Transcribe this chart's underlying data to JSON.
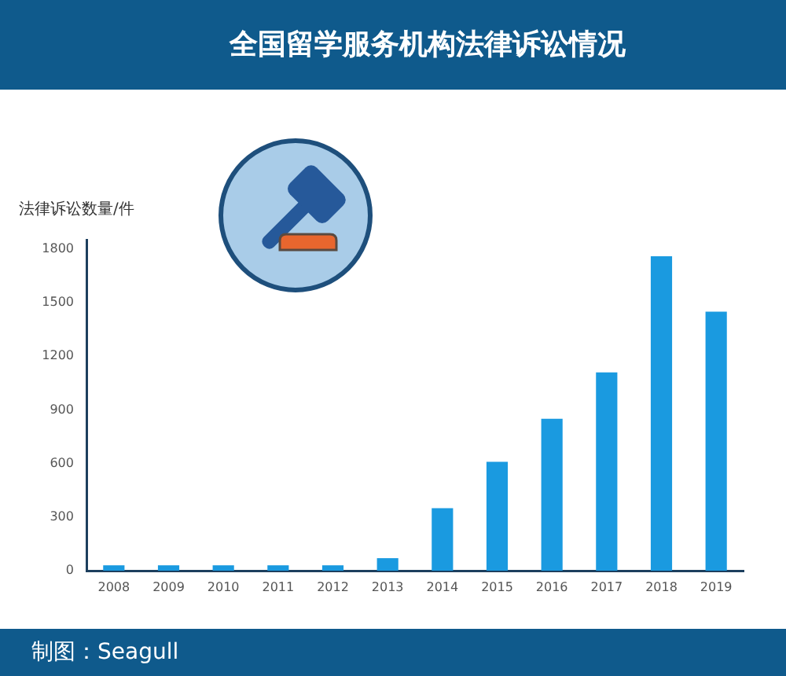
{
  "chart_data": {
    "type": "bar",
    "title": "全国留学服务机构法律诉讼情况",
    "ylabel": "法律诉讼数量/件",
    "annotations": [
      "制图：Seagull"
    ],
    "categories": [
      "2008",
      "2009",
      "2010",
      "2011",
      "2012",
      "2013",
      "2014",
      "2015",
      "2016",
      "2017",
      "2018",
      "2019"
    ],
    "values": [
      30,
      30,
      30,
      30,
      30,
      70,
      350,
      610,
      850,
      1110,
      1760,
      1450
    ],
    "color": "#1a9ae0",
    "ylim": [
      0,
      1850
    ],
    "yticks": [
      0,
      300,
      600,
      900,
      1200,
      1500,
      1800
    ]
  }
}
